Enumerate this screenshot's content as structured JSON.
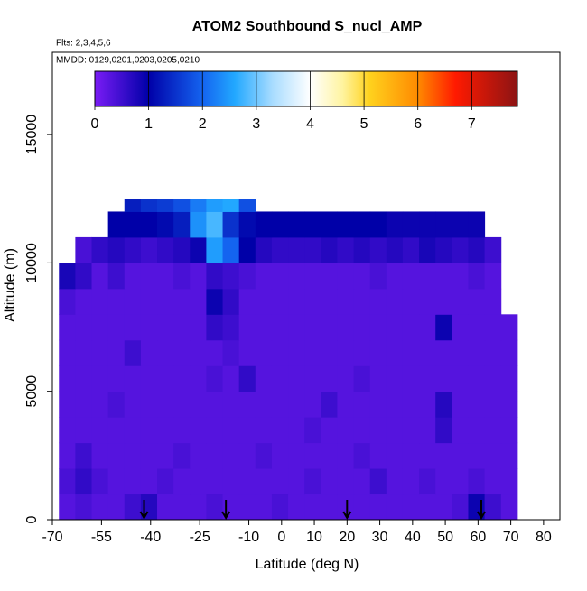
{
  "chart_data": {
    "type": "heatmap",
    "title": "ATOM2 Southbound S_nucl_AMP",
    "subtitle_lines": [
      "Flts: 2,3,4,5,6",
      "MMDD: 0129,0201,0203,0205,0210"
    ],
    "x_label": "Latitude (deg N)",
    "y_label": "Altitude (m)",
    "xlim": [
      -70,
      85
    ],
    "xticks": [
      -70,
      -55,
      -40,
      -25,
      -10,
      0,
      10,
      20,
      30,
      40,
      50,
      60,
      70,
      80
    ],
    "ylim": [
      0,
      18200
    ],
    "yticks": [
      0,
      5000,
      10000,
      15000
    ],
    "colorbar": {
      "lim": [
        0,
        7.85
      ],
      "ticks": [
        0,
        1,
        2,
        3,
        4,
        5,
        6,
        7
      ]
    },
    "colorscale": [
      [
        0,
        "#7a1cf5"
      ],
      [
        1,
        "#0000a8"
      ],
      [
        2,
        "#1464f0"
      ],
      [
        2.6,
        "#22a8ff"
      ],
      [
        3.3,
        "#a8dcff"
      ],
      [
        4,
        "#ffffff"
      ],
      [
        4.6,
        "#fff4a0"
      ],
      [
        5.1,
        "#ffd21e"
      ],
      [
        6,
        "#ff8a00"
      ],
      [
        6.7,
        "#ff1a00"
      ],
      [
        7.85,
        "#8c1414"
      ]
    ],
    "heatmap": {
      "lat_edges": [
        -68,
        -63,
        -58,
        -53,
        -48,
        -43,
        -38,
        -33,
        -28,
        -23,
        -18,
        -13,
        -8,
        -3,
        2,
        7,
        12,
        17,
        22,
        27,
        32,
        37,
        42,
        47,
        52,
        57,
        62,
        67,
        72
      ],
      "alt_edges": [
        0,
        1000,
        2000,
        3000,
        4000,
        5000,
        6000,
        7000,
        8000,
        9000,
        10000,
        11000,
        12000,
        12500
      ],
      "values": [
        [
          0.3,
          0.4,
          0.3,
          0.3,
          0.5,
          0.7,
          0.3,
          0.3,
          0.3,
          0.4,
          0.3,
          0.3,
          0.3,
          0.4,
          0.3,
          0.3,
          0.3,
          0.3,
          0.3,
          0.3,
          0.3,
          0.3,
          0.3,
          0.3,
          0.4,
          0.9,
          0.5,
          0.3
        ],
        [
          0.4,
          0.6,
          0.4,
          0.3,
          0.3,
          0.3,
          0.4,
          0.3,
          0.3,
          0.3,
          0.3,
          0.3,
          0.3,
          0.3,
          0.3,
          0.4,
          0.3,
          0.3,
          0.3,
          0.5,
          0.3,
          0.3,
          0.4,
          0.3,
          0.3,
          0.4,
          0.3,
          0.3
        ],
        [
          0.3,
          0.5,
          0.3,
          0.3,
          0.3,
          0.3,
          0.3,
          0.4,
          0.3,
          0.3,
          0.3,
          0.3,
          0.4,
          0.3,
          0.3,
          0.3,
          0.3,
          0.3,
          0.4,
          0.3,
          0.3,
          0.3,
          0.3,
          0.3,
          0.3,
          0.3,
          0.3,
          0.3
        ],
        [
          0.3,
          0.3,
          0.3,
          0.3,
          0.3,
          0.3,
          0.3,
          0.3,
          0.3,
          0.3,
          0.3,
          0.3,
          0.3,
          0.3,
          0.3,
          0.4,
          0.3,
          0.3,
          0.3,
          0.3,
          0.3,
          0.3,
          0.3,
          0.6,
          0.3,
          0.3,
          0.3,
          0.3
        ],
        [
          0.3,
          0.3,
          0.3,
          0.4,
          0.3,
          0.3,
          0.3,
          0.3,
          0.3,
          0.3,
          0.3,
          0.3,
          0.3,
          0.3,
          0.3,
          0.3,
          0.5,
          0.3,
          0.3,
          0.3,
          0.3,
          0.3,
          0.3,
          0.7,
          0.3,
          0.3,
          0.3,
          0.3
        ],
        [
          0.3,
          0.3,
          0.3,
          0.3,
          0.3,
          0.3,
          0.3,
          0.3,
          0.3,
          0.4,
          0.3,
          0.6,
          0.3,
          0.3,
          0.3,
          0.3,
          0.3,
          0.3,
          0.4,
          0.3,
          0.3,
          0.3,
          0.3,
          0.3,
          0.3,
          0.3,
          0.3,
          0.3
        ],
        [
          0.3,
          0.3,
          0.3,
          0.3,
          0.5,
          0.3,
          0.3,
          0.3,
          0.3,
          0.3,
          0.4,
          0.3,
          0.3,
          0.3,
          0.3,
          0.3,
          0.3,
          0.3,
          0.3,
          0.3,
          0.3,
          0.3,
          0.3,
          0.3,
          0.3,
          0.3,
          0.3,
          0.3
        ],
        [
          0.3,
          0.3,
          0.3,
          0.3,
          0.3,
          0.3,
          0.3,
          0.3,
          0.3,
          0.6,
          0.5,
          0.3,
          0.3,
          0.3,
          0.3,
          0.3,
          0.3,
          0.3,
          0.3,
          0.3,
          0.3,
          0.3,
          0.3,
          0.9,
          0.3,
          0.3,
          0.3,
          0.3
        ],
        [
          0.4,
          0.3,
          0.3,
          0.3,
          0.3,
          0.3,
          0.3,
          0.3,
          0.3,
          0.9,
          0.6,
          0.3,
          0.3,
          0.3,
          0.3,
          0.3,
          0.3,
          0.3,
          0.3,
          0.3,
          0.3,
          0.3,
          0.3,
          0.3,
          0.3,
          0.3,
          0.3,
          null
        ],
        [
          0.8,
          0.6,
          0.3,
          0.5,
          0.3,
          0.3,
          0.3,
          0.4,
          0.3,
          0.6,
          0.5,
          0.4,
          0.3,
          0.3,
          0.3,
          0.3,
          0.3,
          0.3,
          0.3,
          0.4,
          0.3,
          0.3,
          0.3,
          0.3,
          0.3,
          0.4,
          0.3,
          null
        ],
        [
          null,
          0.4,
          0.6,
          0.7,
          0.6,
          0.5,
          0.6,
          0.7,
          0.9,
          2.5,
          2.0,
          1.0,
          0.7,
          0.6,
          0.6,
          0.6,
          0.7,
          0.6,
          0.7,
          0.6,
          0.7,
          0.6,
          0.8,
          0.7,
          0.6,
          0.7,
          0.5,
          null
        ],
        [
          null,
          null,
          null,
          1.0,
          1.0,
          1.0,
          1.1,
          1.3,
          2.4,
          2.8,
          1.5,
          1.1,
          1.0,
          1.0,
          1.0,
          1.0,
          1.0,
          1.0,
          1.0,
          1.0,
          0.9,
          0.9,
          0.9,
          0.9,
          0.9,
          0.9,
          null,
          null
        ],
        [
          null,
          null,
          null,
          null,
          1.3,
          1.5,
          1.6,
          1.8,
          2.2,
          2.5,
          2.6,
          1.8,
          null,
          null,
          null,
          null,
          null,
          null,
          null,
          null,
          null,
          null,
          null,
          null,
          null,
          null,
          null,
          null
        ]
      ]
    },
    "arrows_lat": [
      -42,
      -17,
      20,
      61
    ]
  }
}
